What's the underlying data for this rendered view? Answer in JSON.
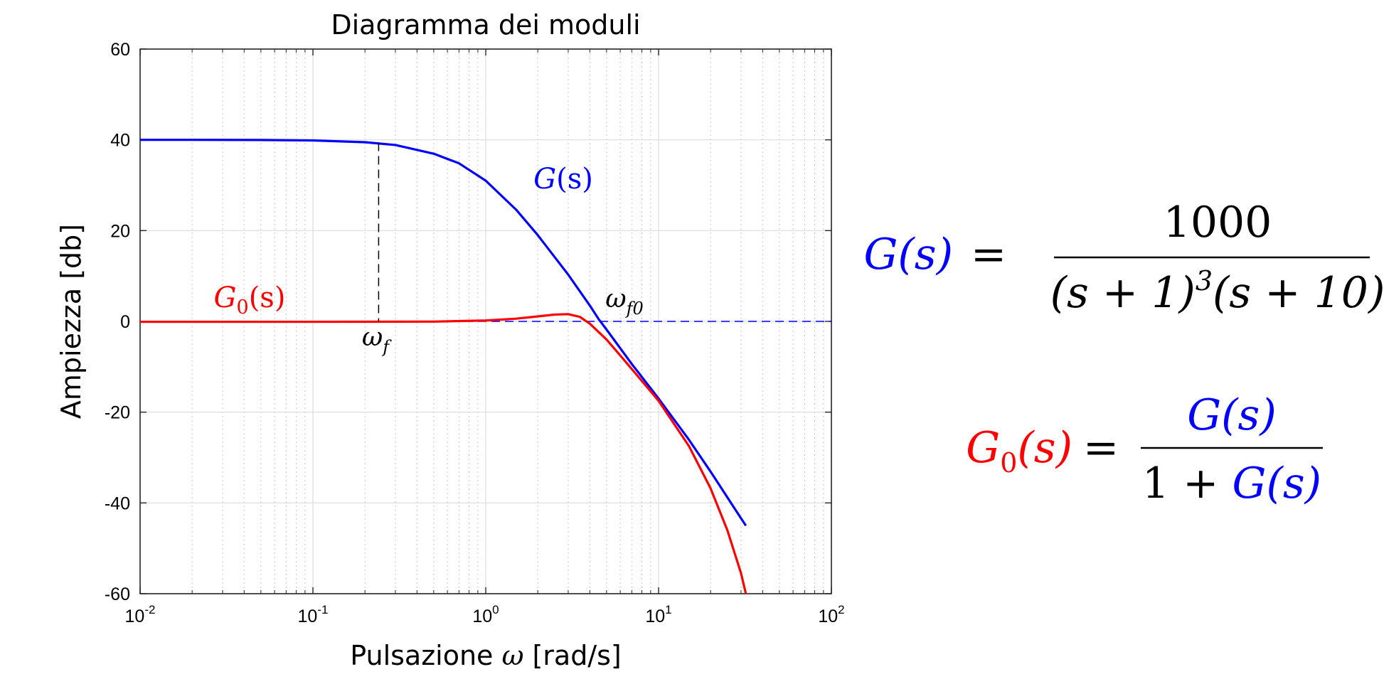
{
  "chart_data": {
    "type": "line",
    "title": "Diagramma dei moduli",
    "xlabel_text": "Pulsazione",
    "xlabel_symbol": "ω",
    "xlabel_unit": "[rad/s]",
    "ylabel": "Ampiezza [db]",
    "x_scale": "log",
    "xlim": [
      0.01,
      100
    ],
    "ylim": [
      -60,
      60
    ],
    "x_ticks": [
      {
        "base": "10",
        "exp": "-2"
      },
      {
        "base": "10",
        "exp": "-1"
      },
      {
        "base": "10",
        "exp": "0"
      },
      {
        "base": "10",
        "exp": "1"
      },
      {
        "base": "10",
        "exp": "2"
      }
    ],
    "y_ticks": [
      "60",
      "40",
      "20",
      "0",
      "-20",
      "-40",
      "-60"
    ],
    "grid": true,
    "series": [
      {
        "label_base": "G",
        "label_sub": "",
        "label_arg": "(s)",
        "color": "#0000ff",
        "style": "solid",
        "x": [
          0.01,
          0.02,
          0.05,
          0.1,
          0.2,
          0.3,
          0.5,
          0.7,
          1,
          1.5,
          2,
          3,
          4,
          4.5,
          5,
          7,
          10,
          15,
          20,
          30,
          32
        ],
        "y": [
          40.0,
          40.0,
          39.97,
          39.87,
          39.48,
          38.86,
          36.95,
          34.83,
          31.0,
          24.6,
          19.0,
          10.3,
          3.5,
          0.5,
          -1.8,
          -9.4,
          -17.0,
          -26.1,
          -33.1,
          -43.4,
          -45.0
        ]
      },
      {
        "label_base": "G",
        "label_sub": "0",
        "label_arg": "(s)",
        "color": "#ff0000",
        "style": "solid",
        "x": [
          0.01,
          0.1,
          0.5,
          1,
          1.5,
          2,
          2.5,
          3,
          3.5,
          4,
          5,
          6,
          7,
          10,
          15,
          20,
          25,
          30,
          32
        ],
        "y": [
          -0.09,
          -0.09,
          -0.05,
          0.2,
          0.6,
          1.1,
          1.5,
          1.6,
          1.0,
          -0.5,
          -4.0,
          -7.5,
          -10.5,
          -17.5,
          -27.5,
          -36.8,
          -46.0,
          -55.5,
          -60.0
        ]
      },
      {
        "label_base": "",
        "label_sub": "",
        "label_arg": "",
        "color": "#0000ff",
        "style": "dashed",
        "x": [
          0.01,
          100
        ],
        "y": [
          0,
          0
        ]
      }
    ],
    "annotations": [
      {
        "base": "ω",
        "sub": "f",
        "x": 0.24,
        "y_from": 39.4,
        "y_to": 0
      },
      {
        "base": "ω",
        "sub": "f0",
        "x": 4.5,
        "y": 0
      }
    ]
  },
  "formulas": {
    "G": {
      "lhs": "G(s)",
      "eq": "=",
      "num": "1000",
      "den_a": "(s + 1)",
      "den_exp": "3",
      "den_b": "(s + 10)"
    },
    "G0": {
      "lhs_base": "G",
      "lhs_sub": "0",
      "lhs_arg": "(s)",
      "eq": "=",
      "num": "G(s)",
      "den_pre": "1 + ",
      "den_g": "G(s)"
    }
  }
}
